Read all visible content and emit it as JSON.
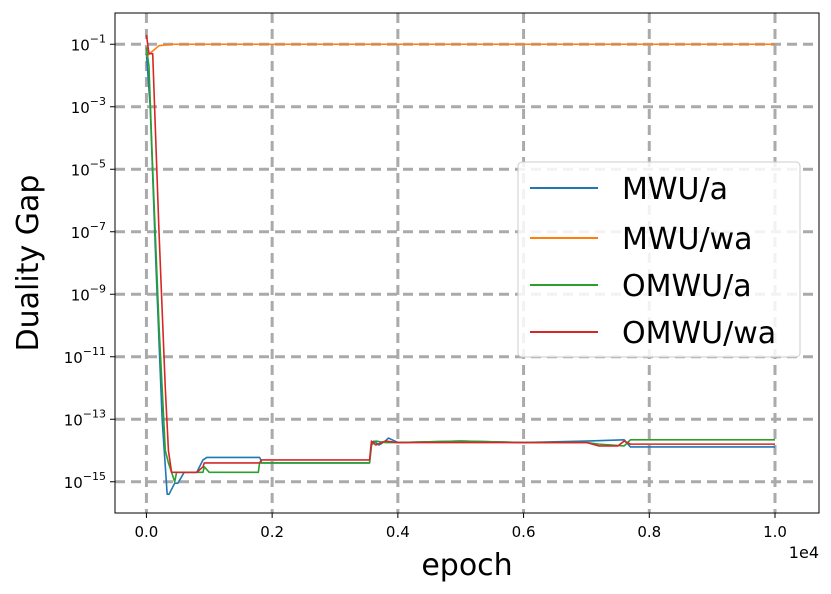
{
  "chart_data": {
    "type": "line",
    "xlabel": "epoch",
    "ylabel": "Duality Gap",
    "x_offset_label": "1e4",
    "xlim": [
      -500,
      10700
    ],
    "x_ticks": [
      0,
      2000,
      4000,
      6000,
      8000,
      10000
    ],
    "x_tick_labels": [
      "0.0",
      "0.2",
      "0.4",
      "0.6",
      "0.8",
      "1.0"
    ],
    "y_scale": "log",
    "ylim": [
      1e-16,
      1
    ],
    "y_ticks": [
      1e-15,
      1e-13,
      1e-11,
      1e-09,
      1e-07,
      1e-05,
      0.001,
      0.1
    ],
    "y_tick_labels": [
      {
        "base": "10",
        "exp": "−15"
      },
      {
        "base": "10",
        "exp": "−13"
      },
      {
        "base": "10",
        "exp": "−11"
      },
      {
        "base": "10",
        "exp": "−9"
      },
      {
        "base": "10",
        "exp": "−7"
      },
      {
        "base": "10",
        "exp": "−5"
      },
      {
        "base": "10",
        "exp": "−3"
      },
      {
        "base": "10",
        "exp": "−1"
      }
    ],
    "grid": true,
    "legend_position": "center-right",
    "series": [
      {
        "name": "MWU/a",
        "color": "#1f77b4",
        "x": [
          0,
          60,
          150,
          250,
          330,
          360,
          450,
          500,
          600,
          800,
          900,
          960,
          1000,
          1800,
          1820,
          1830,
          2000,
          3550,
          3580,
          3620,
          3700,
          3800,
          3850,
          4000,
          5000,
          6000,
          7000,
          7600,
          7700,
          8000,
          9000,
          10000
        ],
        "y": [
          0.05,
          0.001,
          1e-08,
          1e-13,
          4e-16,
          4e-16,
          9e-16,
          9e-16,
          2e-15,
          2e-15,
          5e-15,
          6e-15,
          6e-15,
          6e-15,
          5e-15,
          4e-15,
          4e-15,
          4e-15,
          1.5e-14,
          2e-14,
          1.5e-14,
          2e-14,
          2.5e-14,
          1.8e-14,
          2e-14,
          1.8e-14,
          2e-14,
          2.2e-14,
          1.3e-14,
          1.3e-14,
          1.3e-14,
          1.3e-14
        ]
      },
      {
        "name": "MWU/wa",
        "color": "#ff7f0e",
        "x": [
          0,
          50,
          200,
          400,
          1000,
          2000,
          3000,
          4000,
          5000,
          6000,
          7000,
          8000,
          9000,
          10000
        ],
        "y": [
          0.04,
          0.05,
          0.09,
          0.1,
          0.1,
          0.1,
          0.1,
          0.1,
          0.1,
          0.1,
          0.1,
          0.1,
          0.1,
          0.1
        ]
      },
      {
        "name": "OMWU/a",
        "color": "#2ca02c",
        "x": [
          0,
          40,
          100,
          200,
          300,
          350,
          450,
          480,
          500,
          600,
          800,
          900,
          920,
          1000,
          1780,
          1800,
          2000,
          3550,
          3580,
          3650,
          3800,
          4000,
          5000,
          6000,
          7000,
          7200,
          7600,
          7700,
          8000,
          9000,
          10000
        ],
        "y": [
          0.08,
          0.02,
          1e-05,
          1e-10,
          1e-14,
          4e-15,
          1e-15,
          2e-15,
          2e-15,
          2e-15,
          2e-15,
          2e-15,
          3e-15,
          2e-15,
          2e-15,
          4e-15,
          4e-15,
          4e-15,
          1.5e-14,
          2e-14,
          1.8e-14,
          1.8e-14,
          2e-14,
          1.8e-14,
          1.8e-14,
          1.6e-14,
          1.4e-14,
          2.2e-14,
          2.2e-14,
          2.2e-14,
          2.2e-14
        ]
      },
      {
        "name": "OMWU/wa",
        "color": "#d62728",
        "x": [
          0,
          40,
          100,
          200,
          300,
          350,
          400,
          500,
          800,
          900,
          920,
          1000,
          1800,
          1830,
          2000,
          3550,
          3580,
          3650,
          3800,
          4000,
          5000,
          6000,
          7000,
          7200,
          7500,
          7600,
          7700,
          8000,
          9000,
          10000
        ],
        "y": [
          0.2,
          0.05,
          0.05,
          1e-07,
          1e-12,
          1e-14,
          2e-15,
          2e-15,
          2e-15,
          3e-15,
          4e-15,
          4e-15,
          4e-15,
          5e-15,
          5e-15,
          5e-15,
          2e-14,
          1.5e-14,
          2e-14,
          1.8e-14,
          1.8e-14,
          1.8e-14,
          1.8e-14,
          1.4e-14,
          1.4e-14,
          2e-14,
          1.6e-14,
          1.6e-14,
          1.6e-14,
          1.6e-14
        ]
      }
    ]
  }
}
